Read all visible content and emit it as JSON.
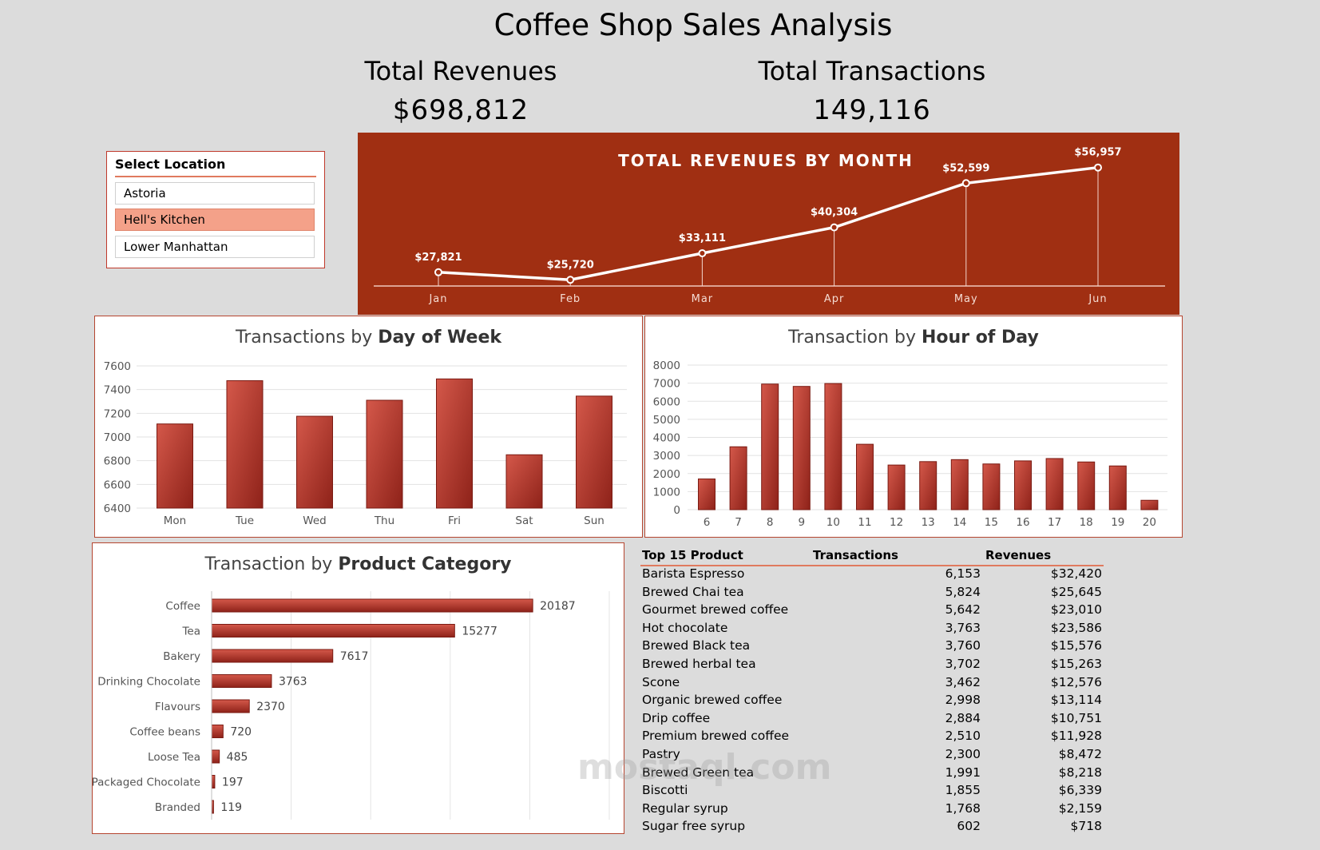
{
  "title": "Coffee Shop Sales Analysis",
  "kpis": {
    "revenue_label": "Total Revenues",
    "revenue_value": "$698,812",
    "transactions_label": "Total Transactions",
    "transactions_value": "149,116"
  },
  "slicer": {
    "title": "Select Location",
    "items": [
      "Astoria",
      "Hell's Kitchen",
      "Lower Manhattan"
    ],
    "selected": "Hell's Kitchen"
  },
  "colors": {
    "accent": "#a02f12",
    "bar": "#b5372a",
    "bar_light": "#d4584a",
    "selected": "#f4a189",
    "panel_border": "#b5452f"
  },
  "chart_data": [
    {
      "id": "revenue_by_month",
      "type": "line",
      "title": "TOTAL REVENUES BY MONTH",
      "categories": [
        "Jan",
        "Feb",
        "Mar",
        "Apr",
        "May",
        "Jun"
      ],
      "values": [
        27821,
        25720,
        33111,
        40304,
        52599,
        56957
      ],
      "labels": [
        "$27,821",
        "$25,720",
        "$33,111",
        "$40,304",
        "$52,599",
        "$56,957"
      ]
    },
    {
      "id": "tx_by_day",
      "type": "bar",
      "title_prefix": "Transactions by ",
      "title_bold": "Day of Week",
      "categories": [
        "Mon",
        "Tue",
        "Wed",
        "Thu",
        "Fri",
        "Sat",
        "Sun"
      ],
      "values": [
        7110,
        7475,
        7175,
        7310,
        7490,
        6850,
        7345
      ],
      "ylim": [
        6400,
        7600
      ],
      "yticks": [
        6400,
        6600,
        6800,
        7000,
        7200,
        7400,
        7600
      ]
    },
    {
      "id": "tx_by_hour",
      "type": "bar",
      "title_prefix": "Transaction by ",
      "title_bold": "Hour of Day",
      "categories": [
        "6",
        "7",
        "8",
        "9",
        "10",
        "11",
        "12",
        "13",
        "14",
        "15",
        "16",
        "17",
        "18",
        "19",
        "20"
      ],
      "values": [
        1700,
        3480,
        6950,
        6820,
        6980,
        3620,
        2470,
        2660,
        2770,
        2530,
        2700,
        2830,
        2640,
        2420,
        520
      ],
      "ylim": [
        0,
        8000
      ],
      "yticks": [
        0,
        1000,
        2000,
        3000,
        4000,
        5000,
        6000,
        7000,
        8000
      ]
    },
    {
      "id": "tx_by_category",
      "type": "bar",
      "orientation": "horizontal",
      "title_prefix": "Transaction by ",
      "title_bold": "Product Category",
      "categories": [
        "Coffee",
        "Tea",
        "Bakery",
        "Drinking Chocolate",
        "Flavours",
        "Coffee beans",
        "Loose Tea",
        "Packaged Chocolate",
        "Branded"
      ],
      "values": [
        20187,
        15277,
        7617,
        3763,
        2370,
        720,
        485,
        197,
        119
      ],
      "xlim": [
        0,
        25000
      ]
    }
  ],
  "top_products": {
    "headers": [
      "Top 15 Product",
      "Transactions",
      "Revenues"
    ],
    "rows": [
      [
        "Barista Espresso",
        "6,153",
        "$32,420"
      ],
      [
        "Brewed Chai tea",
        "5,824",
        "$25,645"
      ],
      [
        "Gourmet brewed coffee",
        "5,642",
        "$23,010"
      ],
      [
        "Hot chocolate",
        "3,763",
        "$23,586"
      ],
      [
        "Brewed Black tea",
        "3,760",
        "$15,576"
      ],
      [
        "Brewed herbal tea",
        "3,702",
        "$15,263"
      ],
      [
        "Scone",
        "3,462",
        "$12,576"
      ],
      [
        "Organic brewed coffee",
        "2,998",
        "$13,114"
      ],
      [
        "Drip coffee",
        "2,884",
        "$10,751"
      ],
      [
        "Premium brewed coffee",
        "2,510",
        "$11,928"
      ],
      [
        "Pastry",
        "2,300",
        "$8,472"
      ],
      [
        "Brewed Green tea",
        "1,991",
        "$8,218"
      ],
      [
        "Biscotti",
        "1,855",
        "$6,339"
      ],
      [
        "Regular syrup",
        "1,768",
        "$2,159"
      ],
      [
        "Sugar free syrup",
        "602",
        "$718"
      ]
    ]
  },
  "watermark": "mostaql.com"
}
